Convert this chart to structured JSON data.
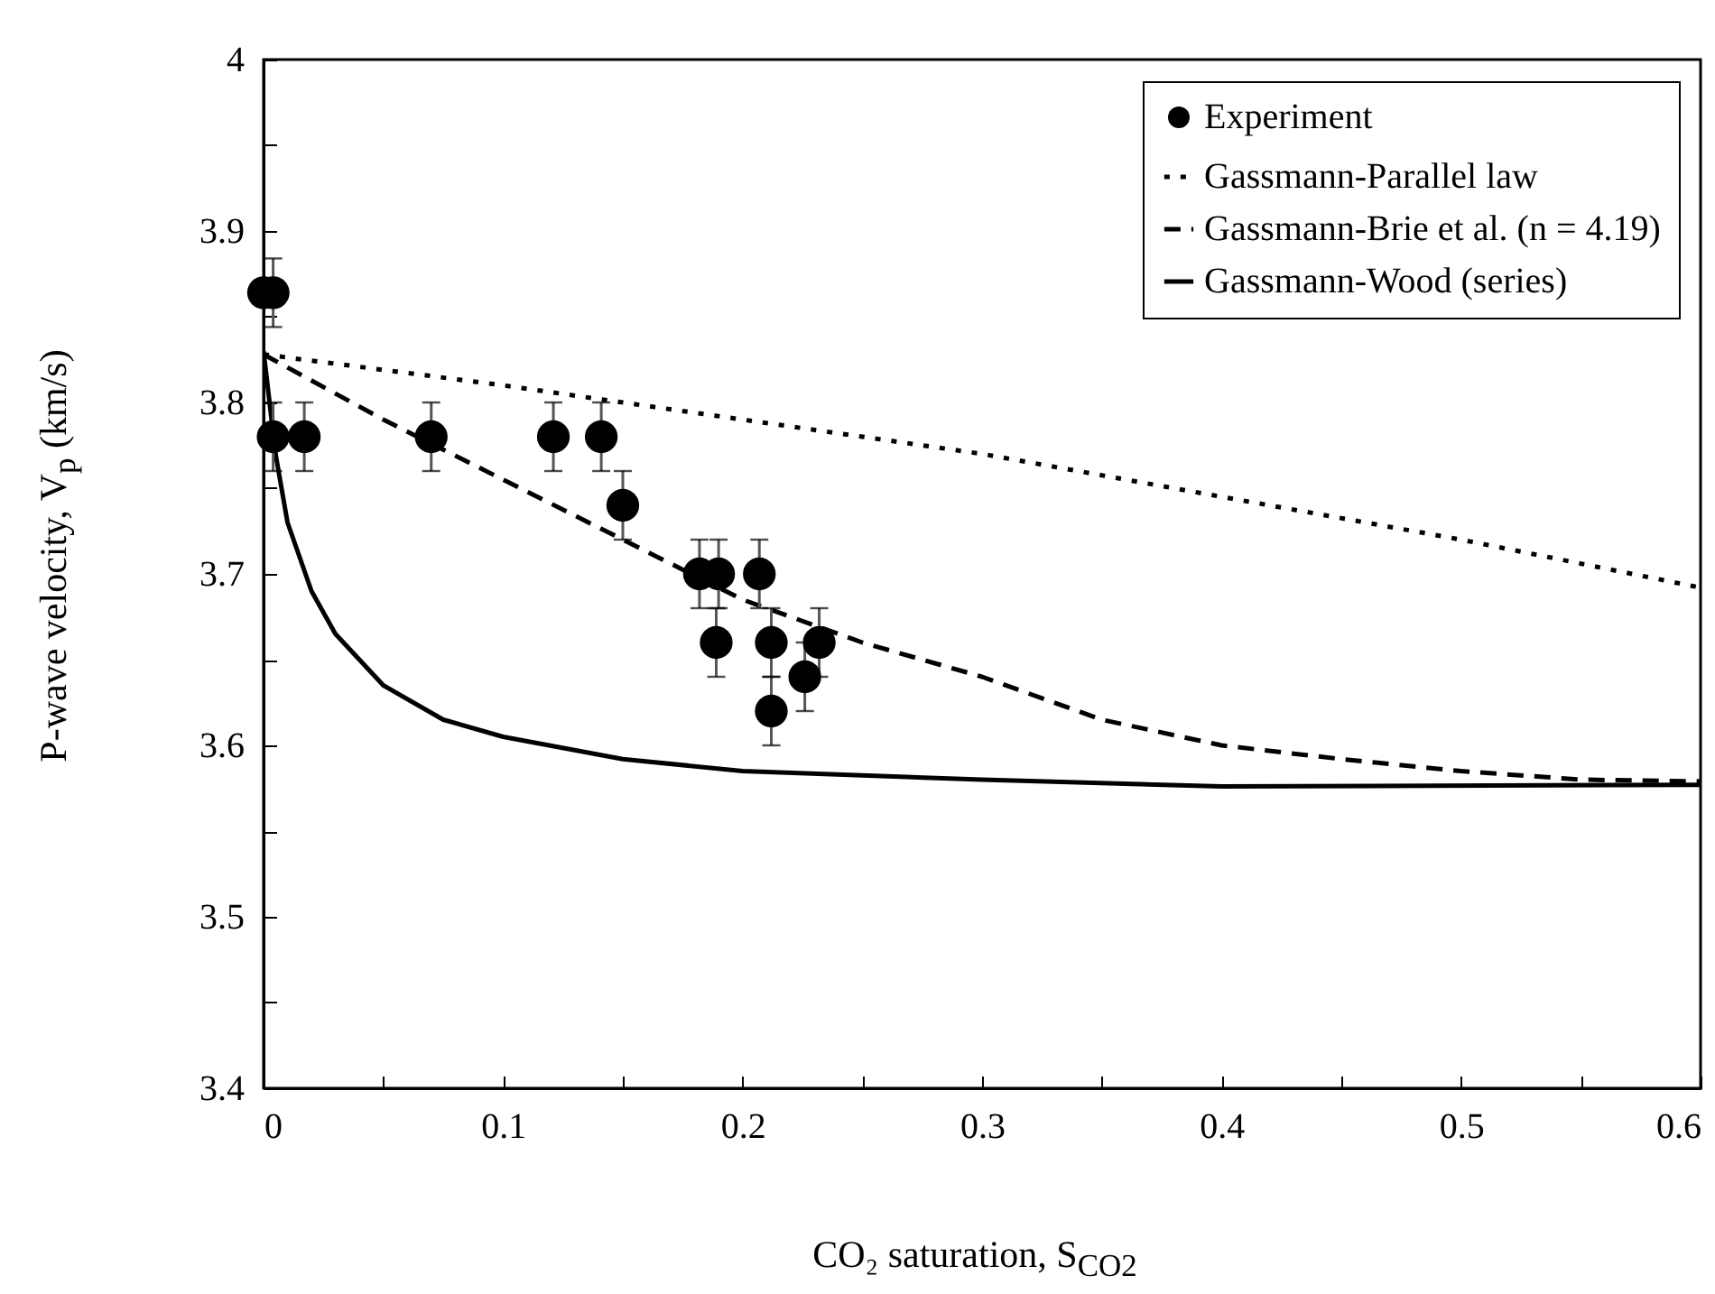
{
  "chart_data": {
    "type": "scatter",
    "xlabel": "CO₂ saturation, S$_{CO2}$",
    "ylabel": "P-wave velocity, V$_{p}$ (km/s)",
    "xlim": [
      0,
      0.6
    ],
    "xticks": [
      0,
      {
        "value": 0.05,
        "label": null
      },
      0.1,
      {
        "value": 0.15,
        "label": null
      },
      0.2,
      {
        "value": 0.25,
        "label": null
      },
      0.3,
      {
        "value": 0.35,
        "label": null
      },
      0.4,
      {
        "value": 0.45,
        "label": null
      },
      0.5,
      {
        "value": 0.55,
        "label": null
      },
      0.6
    ],
    "ylim": [
      3.4,
      4
    ],
    "yticks": [
      3.4,
      {
        "value": 3.45,
        "label": null
      },
      3.5,
      {
        "value": 3.55,
        "label": null
      },
      3.6,
      {
        "value": 3.65,
        "label": null
      },
      3.7,
      {
        "value": 3.75,
        "label": null
      },
      3.8,
      {
        "value": 3.85,
        "label": null
      },
      3.9,
      {
        "value": 3.95,
        "label": null
      },
      4
    ],
    "grid": false,
    "legend": "top right",
    "series": [
      {
        "name": "Experiment",
        "color": "#000000",
        "marker": "circle",
        "x": [
          0,
          0.004,
          0.004,
          0.017,
          0.07,
          0.121,
          0.141,
          0.15,
          0.182,
          0.19,
          0.207,
          0.189,
          0.212,
          0.232,
          0.226,
          0.212
        ],
        "values": [
          3.864,
          3.864,
          3.78,
          3.78,
          3.78,
          3.78,
          3.78,
          3.74,
          3.7,
          3.7,
          3.7,
          3.66,
          3.66,
          3.66,
          3.64,
          3.62
        ],
        "errors": [
          null,
          0.02,
          0.02,
          0.02,
          0.02,
          0.02,
          0.02,
          0.02,
          0.02,
          0.02,
          0.02,
          0.02,
          0.02,
          0.02,
          0.02,
          0.02
        ]
      },
      {
        "name": "Gassmann-Parallel law",
        "type": "line",
        "color": "#000000",
        "line_style": "dotted",
        "marker": "none",
        "x": [
          0,
          0.1,
          0.2,
          0.3,
          0.4,
          0.5,
          0.6
        ],
        "values": [
          3.828,
          3.81,
          3.79,
          3.77,
          3.745,
          3.72,
          3.692
        ]
      },
      {
        "name": "Gassmann-Brie et al. (n = 4.19)",
        "type": "line",
        "color": "#000000",
        "line_style": "dashed",
        "marker": "none",
        "x": [
          0,
          0.05,
          0.1,
          0.15,
          0.2,
          0.25,
          0.3,
          0.35,
          0.4,
          0.45,
          0.5,
          0.55,
          0.6
        ],
        "values": [
          3.828,
          3.79,
          3.755,
          3.72,
          3.685,
          3.66,
          3.64,
          3.615,
          3.6,
          3.592,
          3.585,
          3.58,
          3.579
        ]
      },
      {
        "name": "Gassmann-Wood (series)",
        "type": "line",
        "color": "#000000",
        "line_style": "solid",
        "marker": "none",
        "x": [
          0,
          0.005,
          0.01,
          0.02,
          0.03,
          0.05,
          0.075,
          0.1,
          0.15,
          0.2,
          0.3,
          0.4,
          0.6
        ],
        "values": [
          3.83,
          3.77,
          3.73,
          3.69,
          3.665,
          3.635,
          3.615,
          3.605,
          3.592,
          3.585,
          3.58,
          3.576,
          3.577
        ]
      }
    ]
  }
}
